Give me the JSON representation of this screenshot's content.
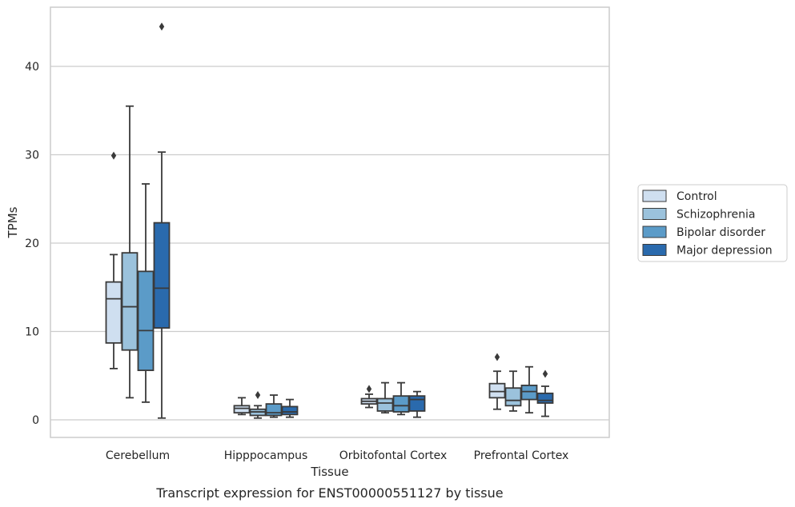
{
  "chart_data": {
    "type": "box",
    "title": "",
    "caption": "Transcript expression for ENST00000551127 by tissue",
    "xlabel": "Tissue",
    "ylabel": "TPMs",
    "ylim": [
      -2,
      47
    ],
    "yticks": [
      0,
      10,
      20,
      30,
      40
    ],
    "grid": "horizontal",
    "legend_position": "right",
    "categories": [
      "Cerebellum",
      "Hipppocampus",
      "Orbitofontal Cortex",
      "Prefrontal Cortex"
    ],
    "series": [
      {
        "name": "Control",
        "color": "#cfdff0",
        "boxes": [
          {
            "whislo": 5.8,
            "q1": 8.7,
            "med": 13.7,
            "q3": 15.6,
            "whishi": 18.7,
            "fliers": [
              29.9
            ]
          },
          {
            "whislo": 0.6,
            "q1": 0.8,
            "med": 1.3,
            "q3": 1.6,
            "whishi": 2.5,
            "fliers": []
          },
          {
            "whislo": 1.4,
            "q1": 1.8,
            "med": 2.1,
            "q3": 2.4,
            "whishi": 2.9,
            "fliers": [
              3.5
            ]
          },
          {
            "whislo": 1.2,
            "q1": 2.5,
            "med": 3.2,
            "q3": 4.1,
            "whishi": 5.5,
            "fliers": [
              7.1
            ]
          }
        ]
      },
      {
        "name": "Schizophrenia",
        "color": "#9bc2dc",
        "boxes": [
          {
            "whislo": 2.5,
            "q1": 7.9,
            "med": 12.8,
            "q3": 18.9,
            "whishi": 35.5,
            "fliers": []
          },
          {
            "whislo": 0.2,
            "q1": 0.5,
            "med": 0.9,
            "q3": 1.2,
            "whishi": 1.6,
            "fliers": [
              2.8
            ]
          },
          {
            "whislo": 0.8,
            "q1": 1.0,
            "med": 1.9,
            "q3": 2.4,
            "whishi": 4.2,
            "fliers": []
          },
          {
            "whislo": 1.0,
            "q1": 1.6,
            "med": 2.2,
            "q3": 3.6,
            "whishi": 5.5,
            "fliers": []
          }
        ]
      },
      {
        "name": "Bipolar disorder",
        "color": "#5b9bc8",
        "boxes": [
          {
            "whislo": 2.0,
            "q1": 5.6,
            "med": 10.1,
            "q3": 16.8,
            "whishi": 26.7,
            "fliers": []
          },
          {
            "whislo": 0.3,
            "q1": 0.5,
            "med": 0.8,
            "q3": 1.8,
            "whishi": 2.8,
            "fliers": []
          },
          {
            "whislo": 0.6,
            "q1": 0.9,
            "med": 1.6,
            "q3": 2.7,
            "whishi": 4.2,
            "fliers": []
          },
          {
            "whislo": 0.8,
            "q1": 2.3,
            "med": 3.2,
            "q3": 3.9,
            "whishi": 6.0,
            "fliers": []
          }
        ]
      },
      {
        "name": "Major depression",
        "color": "#2a6aad",
        "boxes": [
          {
            "whislo": 0.2,
            "q1": 10.4,
            "med": 14.9,
            "q3": 22.3,
            "whishi": 30.3,
            "fliers": [
              44.5
            ]
          },
          {
            "whislo": 0.3,
            "q1": 0.6,
            "med": 0.9,
            "q3": 1.5,
            "whishi": 2.3,
            "fliers": []
          },
          {
            "whislo": 0.3,
            "q1": 1.0,
            "med": 2.3,
            "q3": 2.7,
            "whishi": 3.2,
            "fliers": []
          },
          {
            "whislo": 0.4,
            "q1": 1.9,
            "med": 2.2,
            "q3": 3.0,
            "whishi": 3.8,
            "fliers": [
              5.2
            ]
          }
        ]
      }
    ]
  }
}
